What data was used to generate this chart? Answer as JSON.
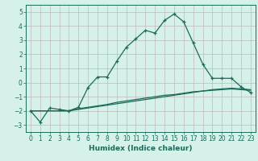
{
  "xlabel": "Humidex (Indice chaleur)",
  "xlim": [
    -0.5,
    23.5
  ],
  "ylim": [
    -3.5,
    5.5
  ],
  "yticks": [
    -3,
    -2,
    -1,
    0,
    1,
    2,
    3,
    4,
    5
  ],
  "xticks": [
    0,
    1,
    2,
    3,
    4,
    5,
    6,
    7,
    8,
    9,
    10,
    11,
    12,
    13,
    14,
    15,
    16,
    17,
    18,
    19,
    20,
    21,
    22,
    23
  ],
  "background_color": "#d6f0ea",
  "grid_color": "#c0b8bc",
  "line_color": "#1a6b5a",
  "line1_x": [
    0,
    1,
    2,
    3,
    4,
    5,
    6,
    7,
    8,
    9,
    10,
    11,
    12,
    13,
    14,
    15,
    16,
    17,
    18,
    19,
    20,
    21,
    22,
    23
  ],
  "line1_y": [
    -2.0,
    -2.8,
    -1.8,
    -1.9,
    -2.0,
    -1.75,
    -0.35,
    0.4,
    0.4,
    1.5,
    2.5,
    3.1,
    3.7,
    3.5,
    4.4,
    4.85,
    4.3,
    2.8,
    1.3,
    0.3,
    0.3,
    0.3,
    -0.3,
    -0.7
  ],
  "line2_x": [
    0,
    1,
    2,
    3,
    4,
    5,
    6,
    7,
    8,
    9,
    10,
    11,
    12,
    13,
    14,
    15,
    16,
    17,
    18,
    19,
    20,
    21,
    22,
    23
  ],
  "line2_y": [
    -2.0,
    -2.0,
    -2.0,
    -2.0,
    -2.0,
    -1.85,
    -1.75,
    -1.65,
    -1.55,
    -1.4,
    -1.3,
    -1.2,
    -1.1,
    -1.0,
    -0.9,
    -0.85,
    -0.75,
    -0.65,
    -0.6,
    -0.55,
    -0.5,
    -0.45,
    -0.5,
    -0.55
  ],
  "line3_x": [
    0,
    1,
    2,
    3,
    4,
    5,
    6,
    7,
    8,
    9,
    10,
    11,
    12,
    13,
    14,
    15,
    16,
    17,
    18,
    19,
    20,
    21,
    22,
    23
  ],
  "line3_y": [
    -2.0,
    -2.0,
    -2.0,
    -2.0,
    -2.0,
    -1.9,
    -1.8,
    -1.7,
    -1.6,
    -1.5,
    -1.4,
    -1.3,
    -1.2,
    -1.1,
    -1.0,
    -0.9,
    -0.8,
    -0.7,
    -0.6,
    -0.5,
    -0.45,
    -0.4,
    -0.45,
    -0.5
  ]
}
